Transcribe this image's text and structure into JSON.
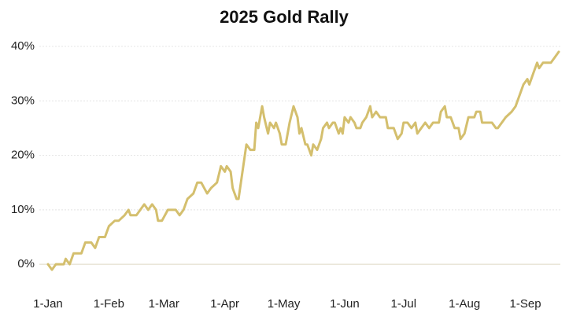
{
  "chart_data": {
    "type": "line",
    "title": "2025 Gold Rally",
    "x": [
      0,
      2,
      4,
      8,
      9,
      11,
      13,
      17,
      19,
      22,
      24,
      26,
      29,
      31,
      34,
      36,
      39,
      41,
      42,
      45,
      47,
      49,
      51,
      53,
      55,
      56,
      58,
      61,
      65,
      67,
      69,
      71,
      74,
      76,
      78,
      81,
      83,
      86,
      88,
      90,
      91,
      93,
      94,
      96,
      97,
      99,
      101,
      103,
      105,
      106,
      107,
      109,
      110,
      112,
      113,
      115,
      116,
      118,
      119,
      121,
      123,
      125,
      127,
      128,
      129,
      131,
      132,
      134,
      135,
      137,
      139,
      140,
      142,
      143,
      145,
      146,
      148,
      149,
      150,
      151,
      153,
      154,
      156,
      157,
      159,
      160,
      162,
      164,
      165,
      167,
      169,
      172,
      173,
      176,
      178,
      180,
      181,
      183,
      185,
      187,
      188,
      190,
      192,
      194,
      196,
      199,
      200,
      202,
      203,
      205,
      207,
      209,
      210,
      212,
      214,
      217,
      218,
      220,
      221,
      226,
      228,
      229,
      231,
      233,
      236,
      238,
      240,
      242,
      244,
      245,
      247,
      249,
      250,
      252,
      256,
      258,
      260
    ],
    "series": [
      {
        "name": "Gold",
        "color": "#d4bf6e",
        "values": [
          0,
          -1,
          0,
          0,
          1,
          0,
          2,
          2,
          4,
          4,
          3,
          5,
          5,
          7,
          8,
          8,
          9,
          10,
          9,
          9,
          10,
          11,
          10,
          11,
          10,
          8,
          8,
          10,
          10,
          9,
          10,
          12,
          13,
          15,
          15,
          13,
          14,
          15,
          18,
          17,
          18,
          17,
          14,
          12,
          12,
          17,
          22,
          21,
          21,
          26,
          25,
          29,
          27,
          24,
          26,
          25,
          26,
          24,
          22,
          22,
          26,
          29,
          27,
          24,
          25,
          22,
          22,
          20,
          22,
          21,
          23,
          25,
          26,
          25,
          26,
          26,
          24,
          25,
          24,
          27,
          26,
          27,
          26,
          25,
          25,
          26,
          27,
          29,
          27,
          28,
          27,
          27,
          25,
          25,
          23,
          24,
          26,
          26,
          25,
          26,
          24,
          25,
          26,
          25,
          26,
          26,
          28,
          29,
          27,
          27,
          25,
          25,
          23,
          24,
          27,
          27,
          28,
          28,
          26,
          26,
          25,
          25,
          26,
          27,
          28,
          29,
          31,
          33,
          34,
          33,
          35,
          37,
          36,
          37,
          37,
          38,
          39
        ]
      }
    ],
    "xlim": [
      0,
      260
    ],
    "xticks": [
      {
        "value": 0,
        "label": "1-Jan"
      },
      {
        "value": 31,
        "label": "1-Feb"
      },
      {
        "value": 59,
        "label": "1-Mar"
      },
      {
        "value": 90,
        "label": "1-Apr"
      },
      {
        "value": 120,
        "label": "1-May"
      },
      {
        "value": 151,
        "label": "1-Jun"
      },
      {
        "value": 181,
        "label": "1-Jul"
      },
      {
        "value": 212,
        "label": "1-Aug"
      },
      {
        "value": 243,
        "label": "1-Sep"
      }
    ],
    "ylim": [
      -2,
      40
    ],
    "yticks": [
      {
        "value": 0,
        "label": "0%"
      },
      {
        "value": 10,
        "label": "10%"
      },
      {
        "value": 20,
        "label": "20%"
      },
      {
        "value": 30,
        "label": "30%"
      },
      {
        "value": 40,
        "label": "40%"
      }
    ],
    "grid": true
  }
}
